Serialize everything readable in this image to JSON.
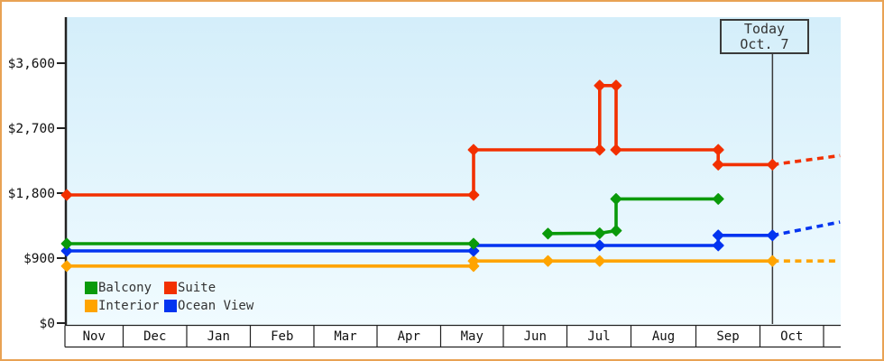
{
  "chart_data": {
    "type": "line",
    "title": "",
    "description": "Cabin price history by month with today marker and dashed forecast",
    "months": [
      "Nov",
      "Dec",
      "Jan",
      "Feb",
      "Mar",
      "Apr",
      "May",
      "Jun",
      "Jul",
      "Aug",
      "Sep",
      "Oct"
    ],
    "x_unit": "month index from Nov 1 (0.0) through late Oct (12.26); fraction = day within month",
    "ylim": [
      0,
      3600
    ],
    "grid": false,
    "legend_position": "bottom-left-inside",
    "y_ticks": [
      {
        "label": "$0",
        "value": 0
      },
      {
        "label": "$900",
        "value": 900
      },
      {
        "label": "$1,800",
        "value": 1800
      },
      {
        "label": "$2,700",
        "value": 2700
      },
      {
        "label": "$3,600",
        "value": 3600
      }
    ],
    "today": {
      "label": "Today",
      "date": "Oct. 7",
      "x": 11.19
    },
    "series": [
      {
        "name": "Interior",
        "color": "#ffa400",
        "style": "step",
        "segments": [
          [
            {
              "x": 0,
              "v": 790
            },
            {
              "x": 6.45,
              "v": 790
            },
            {
              "x": 6.45,
              "v": 860
            },
            {
              "x": 7.63,
              "v": 860
            },
            {
              "x": 8.45,
              "v": 860
            },
            {
              "x": 11.19,
              "v": 860
            }
          ]
        ],
        "forecast": [
          {
            "x": 11.19,
            "v": 860
          },
          {
            "x": 12.26,
            "v": 860
          }
        ]
      },
      {
        "name": "Ocean View",
        "color": "#0334f0",
        "style": "step",
        "segments": [
          [
            {
              "x": 0,
              "v": 1000
            },
            {
              "x": 6.45,
              "v": 1000
            },
            {
              "x": 6.45,
              "v": 1075,
              "marker": false
            },
            {
              "x": 8.45,
              "v": 1075
            },
            {
              "x": 10.33,
              "v": 1075
            },
            {
              "x": 10.33,
              "v": 1215
            },
            {
              "x": 11.19,
              "v": 1215
            }
          ]
        ],
        "forecast": [
          {
            "x": 11.19,
            "v": 1215
          },
          {
            "x": 12.26,
            "v": 1400
          }
        ]
      },
      {
        "name": "Balcony",
        "color": "#0a9a0a",
        "style": "step",
        "segments": [
          [
            {
              "x": 0,
              "v": 1100
            },
            {
              "x": 6.45,
              "v": 1100
            }
          ],
          [
            {
              "x": 7.63,
              "v": 1240
            },
            {
              "x": 8.45,
              "v": 1245
            },
            {
              "x": 8.71,
              "v": 1280
            },
            {
              "x": 8.71,
              "v": 1720
            },
            {
              "x": 10.33,
              "v": 1720
            }
          ]
        ],
        "forecast": []
      },
      {
        "name": "Suite",
        "color": "#f23000",
        "style": "step",
        "segments": [
          [
            {
              "x": 0,
              "v": 1775
            },
            {
              "x": 6.45,
              "v": 1775
            },
            {
              "x": 6.45,
              "v": 2400
            },
            {
              "x": 8.45,
              "v": 2400
            },
            {
              "x": 8.45,
              "v": 3290
            },
            {
              "x": 8.71,
              "v": 3290
            },
            {
              "x": 8.71,
              "v": 2400
            },
            {
              "x": 10.33,
              "v": 2400
            },
            {
              "x": 10.33,
              "v": 2195
            },
            {
              "x": 11.19,
              "v": 2195
            }
          ]
        ],
        "forecast": [
          {
            "x": 11.19,
            "v": 2195
          },
          {
            "x": 12.26,
            "v": 2320
          }
        ]
      }
    ],
    "legend": [
      {
        "label": "Balcony",
        "color": "#0a9a0a"
      },
      {
        "label": "Suite",
        "color": "#f23000"
      },
      {
        "label": "Interior",
        "color": "#ffa400"
      },
      {
        "label": "Ocean View",
        "color": "#0334f0"
      }
    ]
  },
  "colors": {
    "frame_border": "#e8a254",
    "plot_bg_top": "#d4eefa",
    "plot_bg_bottom": "#f0fbff",
    "axis": "#222222",
    "today_line": "#3a3a3a",
    "text": "#333333"
  }
}
